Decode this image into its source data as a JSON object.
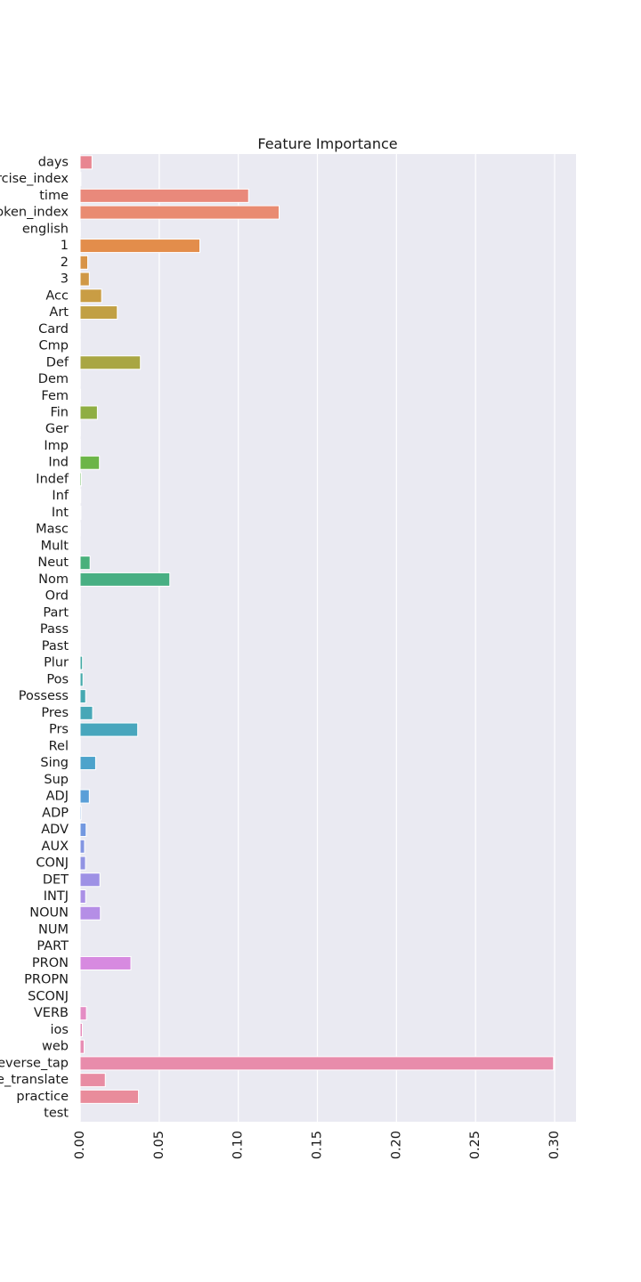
{
  "chart_data": {
    "type": "bar",
    "orientation": "horizontal",
    "title": "Feature Importance",
    "xlabel": "",
    "ylabel": "",
    "xlim": [
      0,
      0.3135
    ],
    "grid": true,
    "xticks": [
      "0.00",
      "0.05",
      "0.10",
      "0.15",
      "0.20",
      "0.25",
      "0.30"
    ],
    "categories": [
      "days",
      "exercise_index",
      "time",
      "token_index",
      "english",
      "1",
      "2",
      "3",
      "Acc",
      "Art",
      "Card",
      "Cmp",
      "Def",
      "Dem",
      "Fem",
      "Fin",
      "Ger",
      "Imp",
      "Ind",
      "Indef",
      "Inf",
      "Int",
      "Masc",
      "Mult",
      "Neut",
      "Nom",
      "Ord",
      "Part",
      "Pass",
      "Past",
      "Plur",
      "Pos",
      "Possess",
      "Pres",
      "Prs",
      "Rel",
      "Sing",
      "Sup",
      "ADJ",
      "ADP",
      "ADV",
      "AUX",
      "CONJ",
      "DET",
      "INTJ",
      "NOUN",
      "NUM",
      "PART",
      "PRON",
      "PROPN",
      "SCONJ",
      "VERB",
      "ios",
      "web",
      "reverse_tap",
      "reverse_translate",
      "practice",
      "test"
    ],
    "values": [
      0.0075,
      0.0005,
      0.1065,
      0.1258,
      0.0002,
      0.0757,
      0.0048,
      0.0058,
      0.0136,
      0.0235,
      0.0001,
      0.0001,
      0.0381,
      0.0001,
      0.0003,
      0.0109,
      0.0002,
      0.0002,
      0.0122,
      0.0008,
      0.0004,
      0.0005,
      0.0002,
      0.0001,
      0.0063,
      0.0567,
      0.0001,
      0.0001,
      0.0001,
      0.0001,
      0.0015,
      0.0018,
      0.0035,
      0.0079,
      0.0364,
      0.0001,
      0.0098,
      0.0001,
      0.0058,
      0.0007,
      0.0038,
      0.0028,
      0.0034,
      0.0125,
      0.0035,
      0.0128,
      0.0001,
      0.0001,
      0.0321,
      0.0001,
      0.0001,
      0.004,
      0.0014,
      0.0025,
      0.2993,
      0.0159,
      0.0369,
      0.0001
    ],
    "colors": [
      "#e88590",
      "#e98786",
      "#e9897b",
      "#e98b71",
      "#e98f66",
      "#e38d4b",
      "#d89346",
      "#d09845",
      "#c99d44",
      "#c1a044",
      "#b9a343",
      "#b1a543",
      "#a9a643",
      "#a2a943",
      "#99ab43",
      "#8fae43",
      "#84b144",
      "#79b445",
      "#6cb548",
      "#5eb64f",
      "#52b65b",
      "#4cb565",
      "#4ab36d",
      "#49b274",
      "#49b07b",
      "#48af83",
      "#47ae8a",
      "#47ad91",
      "#46ac98",
      "#46ab9f",
      "#45aaa5",
      "#45a9ab",
      "#46a8b1",
      "#47a7b7",
      "#48a6bd",
      "#4aa5c4",
      "#4da3cb",
      "#52a1d2",
      "#5a9fd8",
      "#659cde",
      "#7398e0",
      "#8395e2",
      "#9193e3",
      "#9e91e5",
      "#aa90e6",
      "#b58ee6",
      "#c08de5",
      "#cb8be4",
      "#d78ae0",
      "#df8bd7",
      "#e28ccd",
      "#e48cc4",
      "#e68cbb",
      "#e78cb3",
      "#e88cab",
      "#e88ca3",
      "#e98c9b",
      "#e98c93"
    ]
  }
}
